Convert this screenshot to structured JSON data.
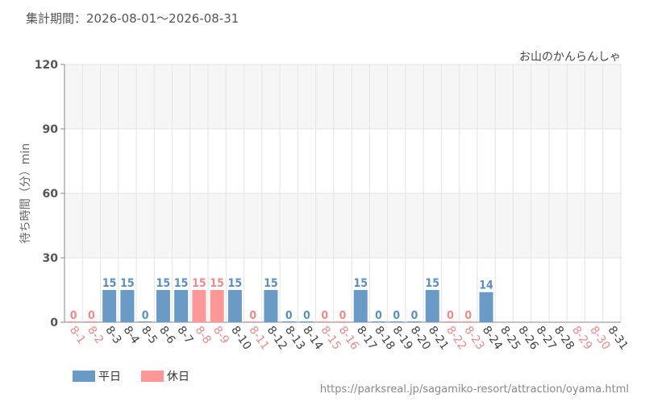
{
  "header": {
    "period_label": "集計期間：2026-08-01～2026-08-31",
    "attraction_name": "お山のかんらんしゃ"
  },
  "footer": {
    "url": "https://parksreal.jp/sagamiko-resort/attraction/oyama.html"
  },
  "legend": {
    "items": [
      {
        "label": "平日",
        "color": "#6a9ac6"
      },
      {
        "label": "休日",
        "color": "#ff9797"
      }
    ]
  },
  "colors": {
    "weekday": "#6a9ac6",
    "holiday": "#ff9797",
    "weekday_label": "#5b8fc0",
    "holiday_label": "#f08a8a",
    "weekday_tick": "#444444",
    "holiday_tick": "#f08a8a"
  },
  "chart_data": {
    "type": "bar",
    "ylabel": "待ち時間（分）min",
    "xlabel": "",
    "ylim": [
      0,
      120
    ],
    "yticks": [
      0,
      30,
      60,
      90,
      120
    ],
    "grid": true,
    "legend_position": "bottom-left",
    "categories": [
      "8-1",
      "8-2",
      "8-3",
      "8-4",
      "8-5",
      "8-6",
      "8-7",
      "8-8",
      "8-9",
      "8-10",
      "8-11",
      "8-12",
      "8-13",
      "8-14",
      "8-15",
      "8-16",
      "8-17",
      "8-18",
      "8-19",
      "8-20",
      "8-21",
      "8-22",
      "8-23",
      "8-24",
      "8-25",
      "8-26",
      "8-27",
      "8-28",
      "8-29",
      "8-30",
      "8-31"
    ],
    "day_type": [
      "holiday",
      "holiday",
      "weekday",
      "weekday",
      "weekday",
      "weekday",
      "weekday",
      "holiday",
      "holiday",
      "weekday",
      "holiday",
      "weekday",
      "weekday",
      "weekday",
      "holiday",
      "holiday",
      "weekday",
      "weekday",
      "weekday",
      "weekday",
      "weekday",
      "holiday",
      "holiday",
      "weekday",
      "weekday",
      "weekday",
      "weekday",
      "weekday",
      "holiday",
      "holiday",
      "weekday"
    ],
    "values": [
      0,
      0,
      15,
      15,
      0,
      15,
      15,
      15,
      15,
      15,
      0,
      15,
      0,
      0,
      0,
      0,
      15,
      0,
      0,
      0,
      15,
      0,
      0,
      14,
      null,
      null,
      null,
      null,
      null,
      null,
      null
    ]
  }
}
